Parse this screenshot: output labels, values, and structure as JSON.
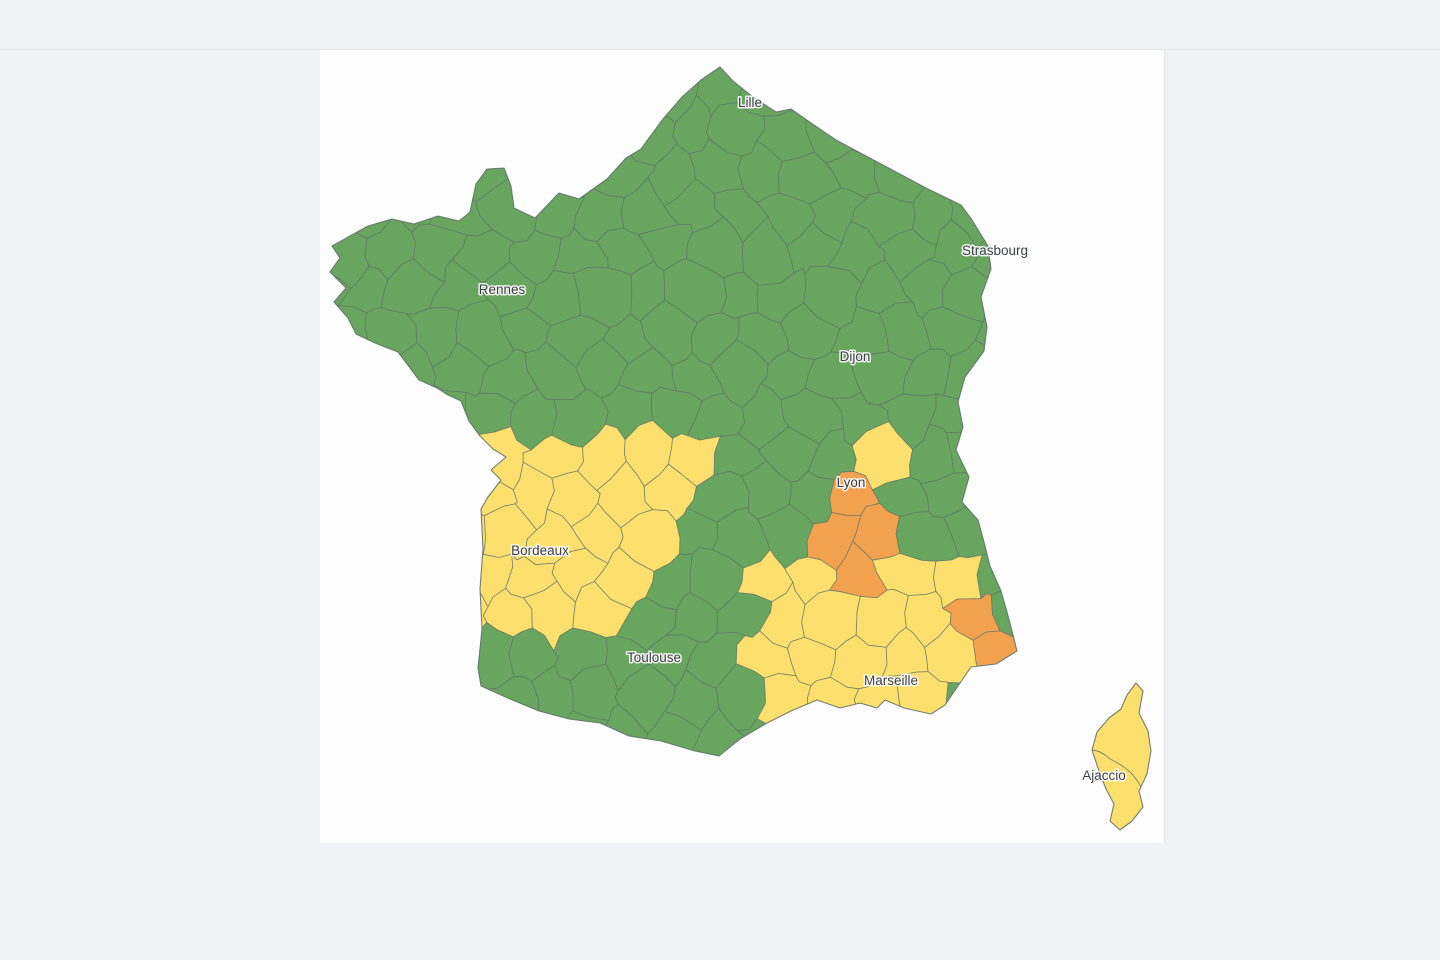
{
  "page": {
    "background": "#f1f2f5",
    "panel_background": "#fdfdfe",
    "divider_color": "#e2e4e9"
  },
  "map": {
    "kind": "france-departments-vigilance-map",
    "colors": {
      "green": "#68a55f",
      "yellow": "#fcdf6d",
      "orange": "#f2a24f",
      "border": "#5f7268",
      "label_text": "#3a3f45",
      "label_halo": "#ffffff",
      "sea": "#fdfdfe"
    },
    "zones": [
      {
        "name": "isere-drome",
        "level": "orange"
      },
      {
        "name": "alpes-maritimes",
        "level": "orange"
      },
      {
        "name": "ain",
        "level": "yellow"
      },
      {
        "name": "southeast-provence",
        "level": "yellow"
      },
      {
        "name": "southwest-aquitaine",
        "level": "yellow"
      },
      {
        "name": "corsica",
        "level": "yellow"
      },
      {
        "name": "rest-of-france",
        "level": "green"
      }
    ],
    "cities": [
      {
        "name": "Lille"
      },
      {
        "name": "Strasbourg"
      },
      {
        "name": "Rennes"
      },
      {
        "name": "Dijon"
      },
      {
        "name": "Lyon"
      },
      {
        "name": "Bordeaux"
      },
      {
        "name": "Toulouse"
      },
      {
        "name": "Marseille"
      },
      {
        "name": "Ajaccio"
      }
    ]
  }
}
